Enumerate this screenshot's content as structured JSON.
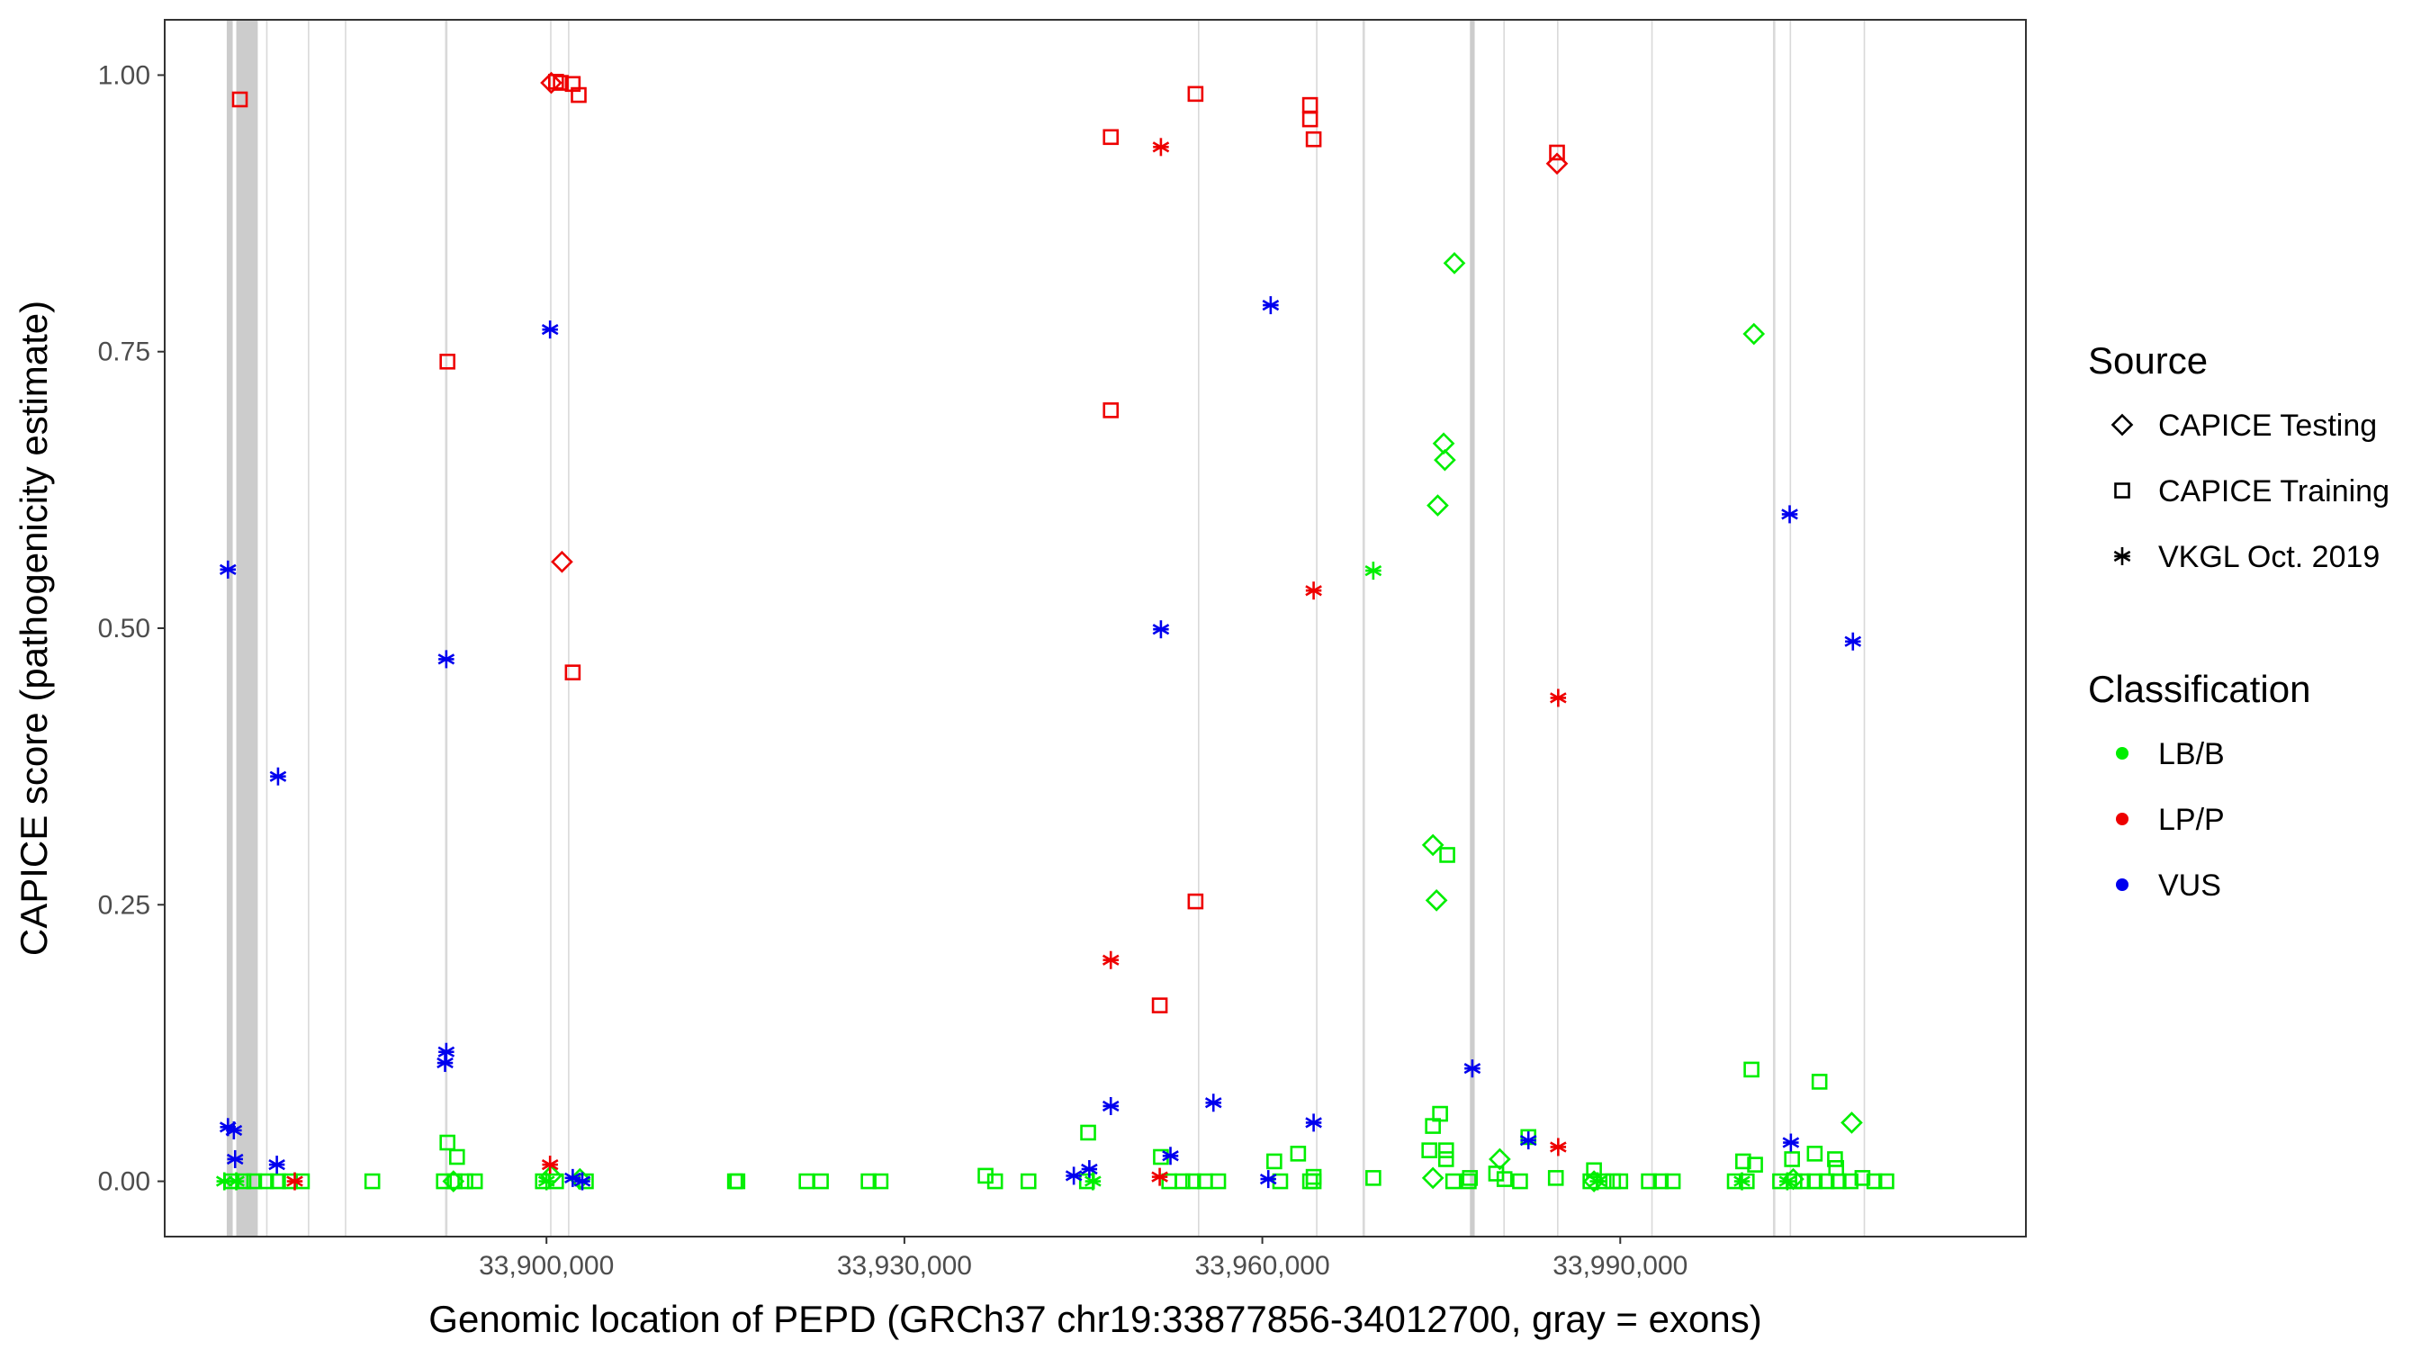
{
  "chart_data": {
    "type": "scatter",
    "xlabel": "Genomic location of PEPD (GRCh37 chr19:33877856-34012700, gray = exons)",
    "ylabel": "CAPICE score (pathogenicity estimate)",
    "xlim": [
      33868000,
      34024000
    ],
    "ylim": [
      -0.05,
      1.05
    ],
    "x_ticks": [
      33900000,
      33930000,
      33960000,
      33990000
    ],
    "x_tick_labels": [
      "33,900,000",
      "33,930,000",
      "33,960,000",
      "33,990,000"
    ],
    "y_ticks": [
      0.0,
      0.25,
      0.5,
      0.75,
      1.0
    ],
    "y_tick_labels": [
      "0.00",
      "0.25",
      "0.50",
      "0.75",
      "1.00"
    ],
    "grid": false,
    "legend_position": "right",
    "colors": {
      "LB/B": "#00ee00",
      "LP/P": "#ee0000",
      "VUS": "#0000ee",
      "exon": "#cccccc"
    },
    "legend": {
      "source_title": "Source",
      "source_items": [
        {
          "shape": "diamond",
          "label": "CAPICE Testing"
        },
        {
          "shape": "square",
          "label": "CAPICE Training"
        },
        {
          "shape": "asterisk",
          "label": "VKGL Oct. 2019"
        }
      ],
      "class_title": "Classification",
      "class_items": [
        {
          "key": "LB/B",
          "label": "LB/B"
        },
        {
          "key": "LP/P",
          "label": "LP/P"
        },
        {
          "key": "VUS",
          "label": "VUS"
        }
      ]
    },
    "exons": [
      [
        33873200,
        33873700
      ],
      [
        33874000,
        33875800
      ],
      [
        33876500,
        33876600
      ],
      [
        33880000,
        33880100
      ],
      [
        33883100,
        33883200
      ],
      [
        33891500,
        33891700
      ],
      [
        33900300,
        33900400
      ],
      [
        33901800,
        33901900
      ],
      [
        33954600,
        33954700
      ],
      [
        33964500,
        33964600
      ],
      [
        33968400,
        33968600
      ],
      [
        33977400,
        33977800
      ],
      [
        33980200,
        33980300
      ],
      [
        33984700,
        33984800
      ],
      [
        33992600,
        33992700
      ],
      [
        34002800,
        34003000
      ],
      [
        34004200,
        34004300
      ],
      [
        34010400,
        34010500
      ]
    ],
    "series": [
      {
        "name": "CAPICE Training",
        "shape": "square",
        "points": [
          [
            33874300,
            0.978,
            "LP/P"
          ],
          [
            33891700,
            0.741,
            "LP/P"
          ],
          [
            33900800,
            0.994,
            "LP/P"
          ],
          [
            33901200,
            0.993,
            "LP/P"
          ],
          [
            33902200,
            0.992,
            "LP/P"
          ],
          [
            33902700,
            0.982,
            "LP/P"
          ],
          [
            33902200,
            0.46,
            "LP/P"
          ],
          [
            33947300,
            0.944,
            "LP/P"
          ],
          [
            33947300,
            0.697,
            "LP/P"
          ],
          [
            33954400,
            0.983,
            "LP/P"
          ],
          [
            33954400,
            0.253,
            "LP/P"
          ],
          [
            33951400,
            0.159,
            "LP/P"
          ],
          [
            33964000,
            0.973,
            "LP/P"
          ],
          [
            33964000,
            0.96,
            "LP/P"
          ],
          [
            33964300,
            0.942,
            "LP/P"
          ],
          [
            33984700,
            0.93,
            "LP/P"
          ],
          [
            33891700,
            0.035,
            "LB/B"
          ],
          [
            33892500,
            0.022,
            "LB/B"
          ],
          [
            33945400,
            0.044,
            "LB/B"
          ],
          [
            33951500,
            0.022,
            "LB/B"
          ],
          [
            33961000,
            0.018,
            "LB/B"
          ],
          [
            33963000,
            0.025,
            "LB/B"
          ],
          [
            33974300,
            0.05,
            "LB/B"
          ],
          [
            33974900,
            0.061,
            "LB/B"
          ],
          [
            33974000,
            0.028,
            "LB/B"
          ],
          [
            33975400,
            0.028,
            "LB/B"
          ],
          [
            33975400,
            0.02,
            "LB/B"
          ],
          [
            33975500,
            0.295,
            "LB/B"
          ],
          [
            33982300,
            0.04,
            "LB/B"
          ],
          [
            33987800,
            0.01,
            "LB/B"
          ],
          [
            34000300,
            0.018,
            "LB/B"
          ],
          [
            34001300,
            0.015,
            "LB/B"
          ],
          [
            34001000,
            0.101,
            "LB/B"
          ],
          [
            34006700,
            0.09,
            "LB/B"
          ],
          [
            34006300,
            0.025,
            "LB/B"
          ],
          [
            34004400,
            0.02,
            "LB/B"
          ],
          [
            34008000,
            0.02,
            "LB/B"
          ],
          [
            34008100,
            0.012,
            "LB/B"
          ],
          [
            33936800,
            0.005,
            "LB/B"
          ],
          [
            33979600,
            0.007,
            "LB/B"
          ],
          [
            33873600,
            0,
            "LB/B"
          ],
          [
            33874600,
            0,
            "LB/B"
          ],
          [
            33875500,
            0,
            "LB/B"
          ],
          [
            33876500,
            0,
            "LB/B"
          ],
          [
            33877500,
            0,
            "LB/B"
          ],
          [
            33878500,
            0,
            "LB/B"
          ],
          [
            33879500,
            0,
            "LB/B"
          ],
          [
            33885400,
            0,
            "LB/B"
          ],
          [
            33891400,
            0,
            "LB/B"
          ],
          [
            33892300,
            0,
            "LB/B"
          ],
          [
            33893200,
            0,
            "LB/B"
          ],
          [
            33894000,
            0,
            "LB/B"
          ],
          [
            33899700,
            0,
            "LB/B"
          ],
          [
            33900800,
            0,
            "LB/B"
          ],
          [
            33903300,
            0,
            "LB/B"
          ],
          [
            33915800,
            0,
            "LB/B"
          ],
          [
            33916000,
            0,
            "LB/B"
          ],
          [
            33921800,
            0,
            "LB/B"
          ],
          [
            33923000,
            0,
            "LB/B"
          ],
          [
            33927000,
            0,
            "LB/B"
          ],
          [
            33928000,
            0,
            "LB/B"
          ],
          [
            33937600,
            0,
            "LB/B"
          ],
          [
            33940400,
            0,
            "LB/B"
          ],
          [
            33945300,
            0,
            "LB/B"
          ],
          [
            33952200,
            0,
            "LB/B"
          ],
          [
            33953300,
            0,
            "LB/B"
          ],
          [
            33954200,
            0,
            "LB/B"
          ],
          [
            33955200,
            0,
            "LB/B"
          ],
          [
            33956300,
            0,
            "LB/B"
          ],
          [
            33961500,
            0,
            "LB/B"
          ],
          [
            33964000,
            0,
            "LB/B"
          ],
          [
            33964300,
            0,
            "LB/B"
          ],
          [
            33964300,
            0.004,
            "LB/B"
          ],
          [
            33969300,
            0.003,
            "LB/B"
          ],
          [
            33976000,
            0,
            "LB/B"
          ],
          [
            33977300,
            0,
            "LB/B"
          ],
          [
            33977400,
            0.003,
            "LB/B"
          ],
          [
            33980300,
            0.002,
            "LB/B"
          ],
          [
            33981600,
            0,
            "LB/B"
          ],
          [
            33984600,
            0.003,
            "LB/B"
          ],
          [
            33987500,
            0,
            "LB/B"
          ],
          [
            33988600,
            0,
            "LB/B"
          ],
          [
            33989400,
            0,
            "LB/B"
          ],
          [
            33990000,
            0,
            "LB/B"
          ],
          [
            33992400,
            0,
            "LB/B"
          ],
          [
            33993400,
            0,
            "LB/B"
          ],
          [
            33994400,
            0,
            "LB/B"
          ],
          [
            33999600,
            0,
            "LB/B"
          ],
          [
            34000600,
            0,
            "LB/B"
          ],
          [
            34003400,
            0,
            "LB/B"
          ],
          [
            34004600,
            0,
            "LB/B"
          ],
          [
            34005300,
            0,
            "LB/B"
          ],
          [
            34006300,
            0,
            "LB/B"
          ],
          [
            34007300,
            0,
            "LB/B"
          ],
          [
            34008300,
            0,
            "LB/B"
          ],
          [
            34009300,
            0,
            "LB/B"
          ],
          [
            34010300,
            0.003,
            "LB/B"
          ],
          [
            34011300,
            0,
            "LB/B"
          ],
          [
            34012300,
            0,
            "LB/B"
          ]
        ]
      },
      {
        "name": "CAPICE Testing",
        "shape": "diamond",
        "points": [
          [
            33900400,
            0.993,
            "LP/P"
          ],
          [
            33901300,
            0.56,
            "LP/P"
          ],
          [
            33984700,
            0.92,
            "LP/P"
          ],
          [
            33976100,
            0.83,
            "LB/B"
          ],
          [
            33975200,
            0.667,
            "LB/B"
          ],
          [
            33975300,
            0.652,
            "LB/B"
          ],
          [
            33974700,
            0.611,
            "LB/B"
          ],
          [
            33974300,
            0.304,
            "LB/B"
          ],
          [
            33974600,
            0.254,
            "LB/B"
          ],
          [
            34001200,
            0.766,
            "LB/B"
          ],
          [
            34009400,
            0.053,
            "LB/B"
          ],
          [
            33979900,
            0.02,
            "LB/B"
          ],
          [
            33892200,
            0,
            "LB/B"
          ],
          [
            33902800,
            0.002,
            "LB/B"
          ],
          [
            33974300,
            0.003,
            "LB/B"
          ],
          [
            33987800,
            0,
            "LB/B"
          ],
          [
            34004500,
            0.002,
            "LB/B"
          ],
          [
            33900400,
            0.005,
            "LB/B"
          ]
        ]
      },
      {
        "name": "VKGL Oct. 2019",
        "shape": "asterisk",
        "points": [
          [
            33900300,
            0.77,
            "VUS"
          ],
          [
            33873300,
            0.553,
            "VUS"
          ],
          [
            33891600,
            0.472,
            "VUS"
          ],
          [
            33877500,
            0.366,
            "VUS"
          ],
          [
            33891600,
            0.117,
            "VUS"
          ],
          [
            33891500,
            0.107,
            "VUS"
          ],
          [
            33873300,
            0.049,
            "VUS"
          ],
          [
            33873800,
            0.046,
            "VUS"
          ],
          [
            33873900,
            0.02,
            "VUS"
          ],
          [
            33877400,
            0.015,
            "VUS"
          ],
          [
            33902200,
            0.003,
            "VUS"
          ],
          [
            33903000,
            0,
            "VUS"
          ],
          [
            33944200,
            0.005,
            "VUS"
          ],
          [
            33945500,
            0.011,
            "VUS"
          ],
          [
            33947300,
            0.068,
            "VUS"
          ],
          [
            33951500,
            0.499,
            "VUS"
          ],
          [
            33952300,
            0.023,
            "VUS"
          ],
          [
            33955900,
            0.071,
            "VUS"
          ],
          [
            33960700,
            0.792,
            "VUS"
          ],
          [
            33960500,
            0.002,
            "VUS"
          ],
          [
            33964300,
            0.053,
            "VUS"
          ],
          [
            33977600,
            0.102,
            "VUS"
          ],
          [
            33982300,
            0.037,
            "VUS"
          ],
          [
            34004200,
            0.603,
            "VUS"
          ],
          [
            34004300,
            0.035,
            "VUS"
          ],
          [
            34009500,
            0.488,
            "VUS"
          ],
          [
            33878900,
            0,
            "LP/P"
          ],
          [
            33900300,
            0.015,
            "LP/P"
          ],
          [
            33947300,
            0.2,
            "LP/P"
          ],
          [
            33951500,
            0.935,
            "LP/P"
          ],
          [
            33951400,
            0.004,
            "LP/P"
          ],
          [
            33964300,
            0.534,
            "LP/P"
          ],
          [
            33984800,
            0.437,
            "LP/P"
          ],
          [
            33984800,
            0.031,
            "LP/P"
          ],
          [
            33969300,
            0.552,
            "LB/B"
          ],
          [
            33873000,
            0,
            "LB/B"
          ],
          [
            33874000,
            0,
            "LB/B"
          ],
          [
            33900000,
            0,
            "LB/B"
          ],
          [
            33945800,
            0,
            "LB/B"
          ],
          [
            34000200,
            0,
            "LB/B"
          ],
          [
            34004000,
            0,
            "LB/B"
          ],
          [
            33988100,
            0,
            "LB/B"
          ]
        ]
      }
    ]
  }
}
